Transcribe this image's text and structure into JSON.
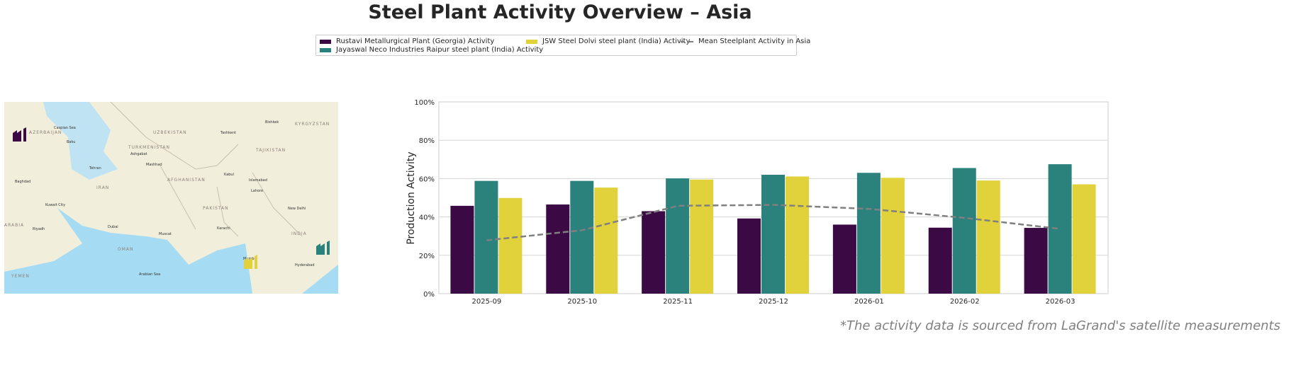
{
  "title": "Steel Plant Activity Overview – Asia",
  "footnote": "*The activity data is sourced from LaGrand's satellite measurements",
  "colors": {
    "rustavi": "#3b0a45",
    "jayaswal": "#2b817c",
    "jsw": "#e1d23b",
    "mean": "#808080"
  },
  "legend": [
    {
      "label": "Rustavi Metallurgical Plant (Georgia) Activity",
      "color": "#3b0a45"
    },
    {
      "label": "Jayaswal Neco Industries Raipur steel plant (India) Activity",
      "color": "#2b817c"
    },
    {
      "label": "JSW Steel Dolvi steel plant (India) Activity",
      "color": "#e1d23b"
    },
    {
      "label": "Mean Steelplant Activity in Asia",
      "color": "#808080"
    }
  ],
  "map": {
    "labels": [
      "UZBEKISTAN",
      "TURKMENISTAN",
      "IRAN",
      "AFGHANISTAN",
      "PAKISTAN",
      "INDIA",
      "OMAN",
      "ARABIA",
      "YEMEN",
      "KYRGYZSTAN",
      "TAJIKISTAN",
      "AZERBAIJAN",
      "Baku",
      "Tehran",
      "Ashgabat",
      "Mashhad",
      "Kabul",
      "Islamabad",
      "Lahore",
      "Karachi",
      "Muscat",
      "Dubai",
      "Riyadh",
      "Baghdad",
      "Kuwait City",
      "Tashkent",
      "Bishkek",
      "New Delhi",
      "Mumbai",
      "Hyderabad",
      "Caspian Sea",
      "Arabian Sea"
    ],
    "markers": [
      {
        "plant": "Rustavi",
        "icon": "factory-icon",
        "color": "#3b0a45"
      },
      {
        "plant": "JSW Dolvi",
        "icon": "factory-icon",
        "color": "#e1d23b"
      },
      {
        "plant": "Jayaswal Raipur",
        "icon": "factory-icon",
        "color": "#2b817c"
      }
    ]
  },
  "chart_data": {
    "type": "bar",
    "title": "",
    "xlabel": "",
    "ylabel": "Production Activity",
    "ylim": [
      0,
      100
    ],
    "yticks": [
      "0%",
      "20%",
      "40%",
      "60%",
      "80%",
      "100%"
    ],
    "grid": true,
    "legend_placement": "top-center",
    "categories": [
      "2025-09",
      "2025-10",
      "2025-11",
      "2025-12",
      "2026-01",
      "2026-02",
      "2026-03"
    ],
    "series": [
      {
        "name": "Rustavi Metallurgical Plant (Georgia) Activity",
        "type": "bar",
        "values": [
          45.8,
          46.5,
          43.0,
          39.2,
          36.0,
          34.4,
          34.3
        ]
      },
      {
        "name": "Jayaswal Neco Industries Raipur steel plant (India) Activity",
        "type": "bar",
        "values": [
          58.8,
          58.8,
          60.1,
          62.0,
          63.0,
          65.5,
          67.5
        ]
      },
      {
        "name": "JSW Steel Dolvi steel plant (India) Activity",
        "type": "bar",
        "values": [
          49.9,
          55.3,
          59.5,
          61.1,
          60.4,
          59.0,
          57.0
        ]
      },
      {
        "name": "Mean Steelplant Activity in Asia",
        "type": "line",
        "values": [
          27.8,
          33.1,
          45.8,
          46.3,
          44.2,
          39.5,
          33.8
        ]
      }
    ]
  }
}
